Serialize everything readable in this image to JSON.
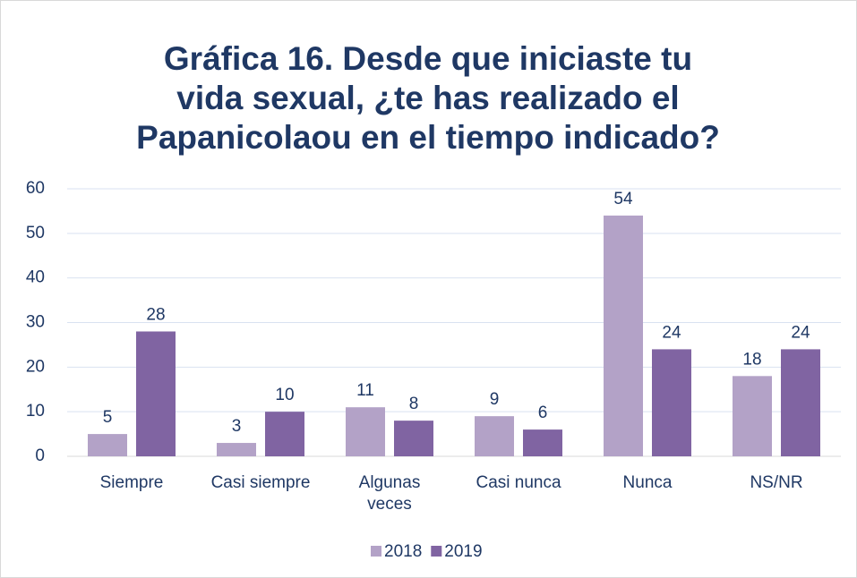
{
  "chart_data": {
    "type": "bar",
    "title": "Gráfica 16. Desde que iniciaste tu\nvida sexual, ¿te has realizado el\nPapanicolaou en el tiempo indicado?",
    "categories": [
      "Siempre",
      "Casi siempre",
      "Algunas\nveces",
      "Casi nunca",
      "Nunca",
      "NS/NR"
    ],
    "series": [
      {
        "name": "2018",
        "color": "#b3a2c7",
        "values": [
          5,
          3,
          11,
          9,
          54,
          18
        ]
      },
      {
        "name": "2019",
        "color": "#8064a2",
        "values": [
          28,
          10,
          8,
          6,
          24,
          24
        ]
      }
    ],
    "ylim": [
      0,
      60
    ],
    "yticks": [
      0,
      10,
      20,
      30,
      40,
      50,
      60
    ],
    "grid": true,
    "legend": "bottom"
  }
}
